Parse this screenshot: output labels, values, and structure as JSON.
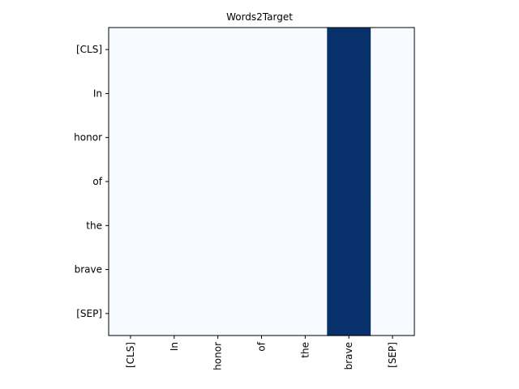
{
  "chart_data": {
    "type": "heatmap",
    "title": "Words2Target",
    "xlabel": "",
    "ylabel": "",
    "x_categories": [
      "[CLS]",
      "In",
      "honor",
      "of",
      "the",
      "brave",
      "[SEP]"
    ],
    "y_categories": [
      "[CLS]",
      "In",
      "honor",
      "of",
      "the",
      "brave",
      "[SEP]"
    ],
    "values": [
      [
        0,
        0,
        0,
        0,
        0,
        1,
        0
      ],
      [
        0,
        0,
        0,
        0,
        0,
        1,
        0
      ],
      [
        0,
        0,
        0,
        0,
        0,
        1,
        0
      ],
      [
        0,
        0,
        0,
        0,
        0,
        1,
        0
      ],
      [
        0,
        0,
        0,
        0,
        0,
        1,
        0
      ],
      [
        0,
        0,
        0,
        0,
        0,
        1,
        0
      ],
      [
        0,
        0,
        0,
        0,
        0,
        1,
        0
      ]
    ],
    "value_range": [
      0,
      1
    ],
    "colormap": "Blues",
    "colors": {
      "low": "#f7fbff",
      "high": "#08306b",
      "axis": "#000000"
    },
    "grid": false,
    "legend": "none"
  }
}
